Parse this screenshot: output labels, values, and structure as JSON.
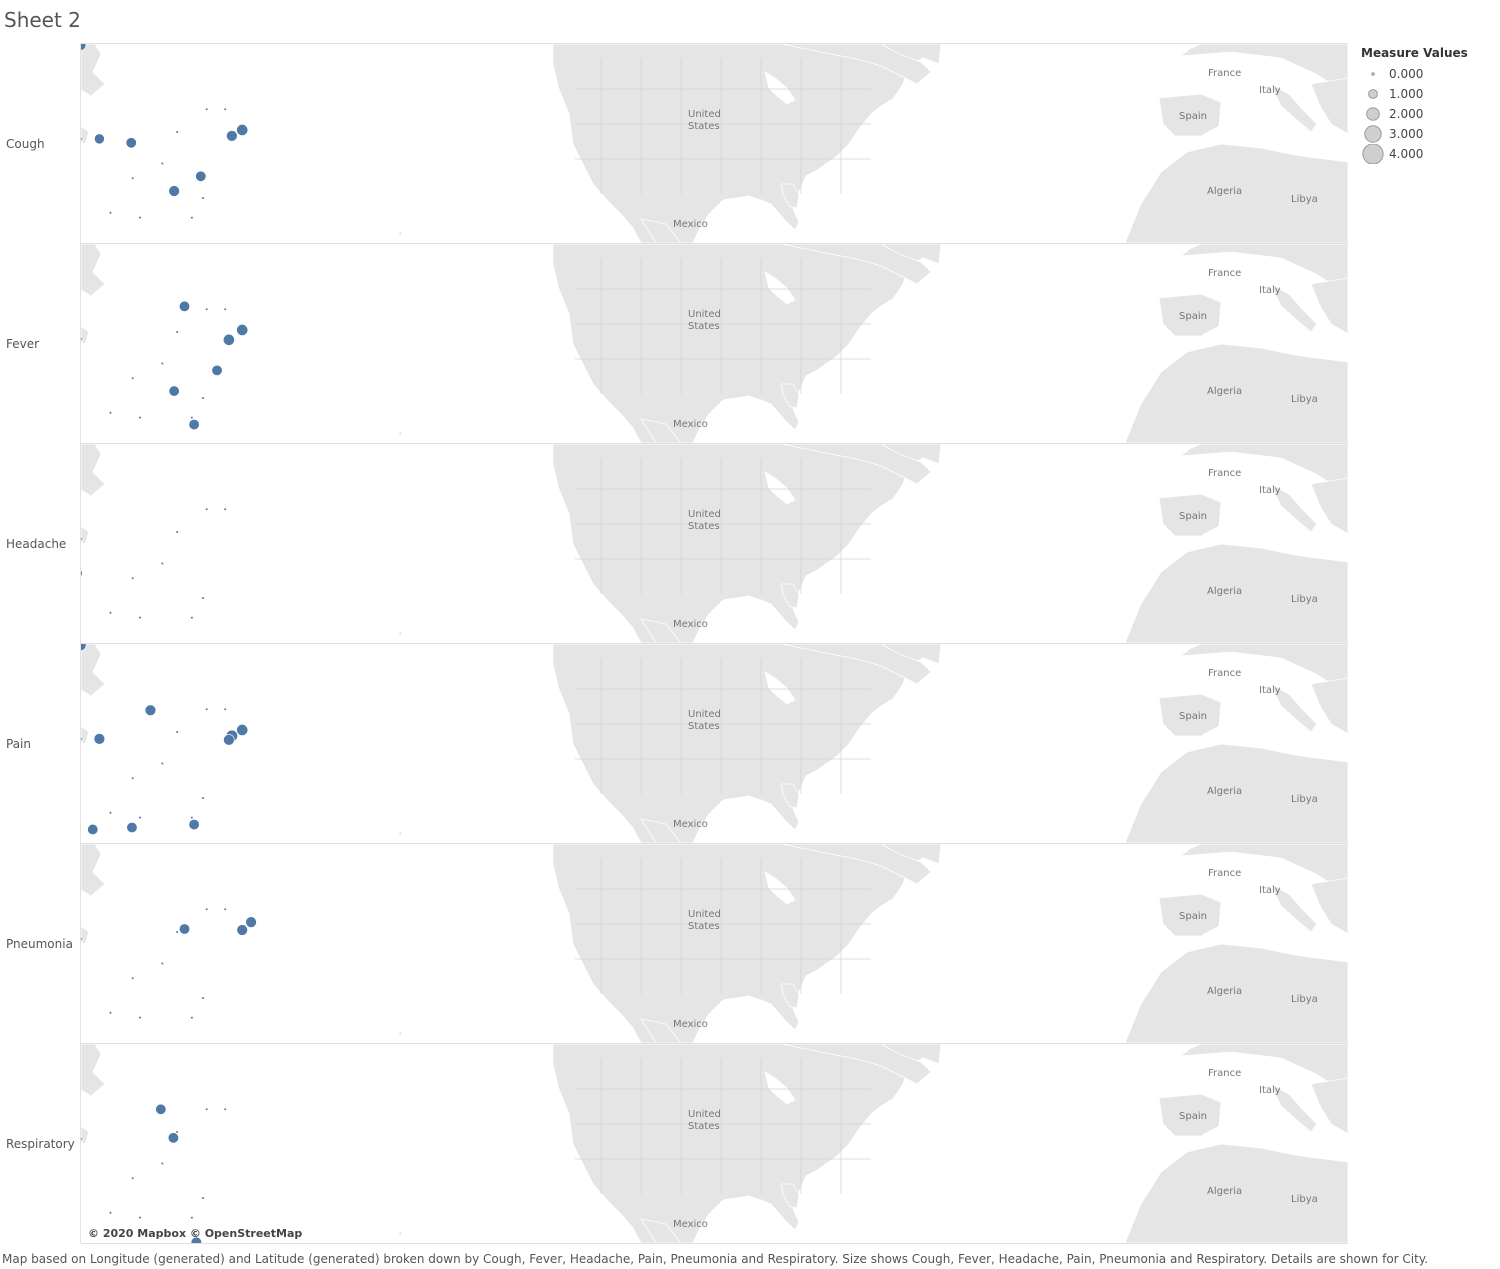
{
  "sheet": {
    "title": "Sheet 2"
  },
  "legend": {
    "title": "Measure Values",
    "items": [
      {
        "label": "0.000",
        "value": 0
      },
      {
        "label": "1.000",
        "value": 1
      },
      {
        "label": "2.000",
        "value": 2
      },
      {
        "label": "3.000",
        "value": 3
      },
      {
        "label": "4.000",
        "value": 4
      }
    ]
  },
  "map": {
    "labels": {
      "us": [
        "United",
        "States"
      ],
      "mexico": "Mexico",
      "france": "France",
      "italy": "Italy",
      "spain": "Spain",
      "algeria": "Algeria",
      "libya": "Libya"
    },
    "marker_color": "#4e79a7",
    "land_color": "#e5e5e5",
    "border_color": "#ffffff"
  },
  "rows": [
    {
      "name": "Cough",
      "markers": [
        [
          -122.3,
          47.6,
          2
        ],
        [
          -97,
          48.5,
          1.6
        ],
        [
          -118.2,
          34,
          3
        ],
        [
          -90.2,
          38.6,
          1.7
        ],
        [
          -94.5,
          39,
          1.6
        ],
        [
          -75.2,
          39.9,
          1.9
        ],
        [
          -76.6,
          39.3,
          1.8
        ],
        [
          -84.4,
          33.7,
          1.8
        ],
        [
          -80.8,
          35.2,
          1.7
        ],
        [
          -82.5,
          27.9,
          1.8
        ],
        [
          -80.2,
          25.8,
          1.7
        ]
      ]
    },
    {
      "name": "Fever",
      "markers": [
        [
          -118.2,
          34,
          2.5
        ],
        [
          -83,
          42.3,
          1.7
        ],
        [
          -75.2,
          39.9,
          1.9
        ],
        [
          -77,
          38.9,
          1.9
        ],
        [
          -78.6,
          35.8,
          1.7
        ],
        [
          -84.4,
          33.7,
          1.7
        ],
        [
          -81.7,
          30.3,
          1.7
        ],
        [
          -157.9,
          21.3,
          1.7
        ]
      ]
    },
    {
      "name": "Headache",
      "markers": [
        [
          -111.9,
          40.8,
          2.6
        ],
        [
          -97.5,
          35.5,
          1.6
        ]
      ]
    },
    {
      "name": "Pain",
      "markers": [
        [
          -122.3,
          47.6,
          3
        ],
        [
          -97,
          48.5,
          1.7
        ],
        [
          -118.2,
          34,
          3.8
        ],
        [
          -105,
          39.7,
          1.8
        ],
        [
          -94.5,
          39,
          1.8
        ],
        [
          -87.6,
          41.9,
          1.8
        ],
        [
          -75.2,
          39.9,
          1.9
        ],
        [
          -76.6,
          39.3,
          2
        ],
        [
          -77,
          38.9,
          1.8
        ],
        [
          -95.4,
          29.8,
          1.7
        ],
        [
          -90.1,
          30,
          1.7
        ],
        [
          -81.7,
          30.3,
          1.7
        ]
      ]
    },
    {
      "name": "Pneumonia",
      "markers": [
        [
          -122.7,
          45.5,
          1.7
        ],
        [
          -118.2,
          34,
          2
        ],
        [
          -117.2,
          32.7,
          2
        ],
        [
          -74,
          40.7,
          1.8
        ],
        [
          -75.2,
          39.9,
          1.8
        ],
        [
          -83,
          40,
          1.7
        ],
        [
          -80.2,
          25.8,
          1.7
        ]
      ]
    },
    {
      "name": "Respiratory",
      "markers": [
        [
          -122.3,
          47.6,
          1.7
        ],
        [
          -116.2,
          43.6,
          1.7
        ],
        [
          -118.2,
          34,
          1.7
        ],
        [
          -106.6,
          35.1,
          1.7
        ],
        [
          -104,
          34.8,
          1.7
        ],
        [
          -84.5,
          39.1,
          1.7
        ],
        [
          -86.2,
          42,
          1.7
        ],
        [
          -81.4,
          28.5,
          1.7
        ]
      ]
    }
  ],
  "footer": {
    "copyright": "© 2020 Mapbox © OpenStreetMap",
    "caption": "Map based on Longitude (generated) and Latitude (generated) broken down by Cough, Fever, Headache, Pain, Pneumonia and Respiratory.  Size shows Cough, Fever, Headache, Pain, Pneumonia and Respiratory.  Details are shown for City."
  }
}
